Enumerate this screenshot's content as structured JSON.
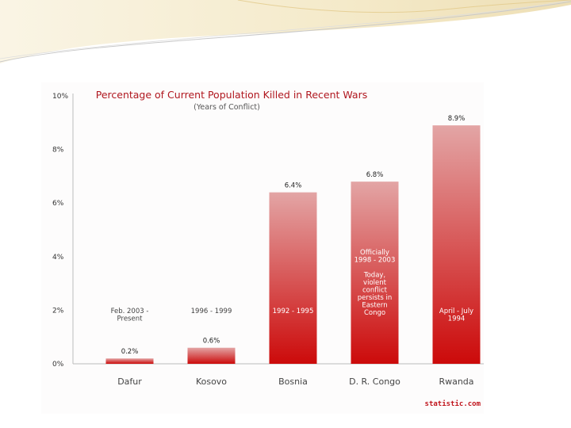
{
  "chart_data": {
    "type": "bar",
    "title": "Percentage of Current Population Killed in Recent Wars",
    "subtitle": "(Years of Conflict)",
    "categories": [
      "Dafur",
      "Kosovo",
      "Bosnia",
      "D. R. Congo",
      "Rwanda"
    ],
    "values": [
      0.2,
      0.6,
      6.4,
      6.8,
      8.9
    ],
    "value_labels": [
      "0.2%",
      "0.6%",
      "6.4%",
      "6.8%",
      "8.9%"
    ],
    "y_ticks": [
      0,
      2,
      4,
      6,
      8,
      10
    ],
    "y_tick_labels": [
      "0%",
      "2%",
      "4%",
      "6%",
      "8%",
      "10%"
    ],
    "ylim": [
      0,
      10
    ],
    "xlabel": "",
    "ylabel": "",
    "grid": false,
    "annotations": [
      {
        "category": "Dafur",
        "lines": [
          "Feb. 2003 -",
          "Present"
        ]
      },
      {
        "category": "Kosovo",
        "lines": [
          "1996 - 1999"
        ]
      },
      {
        "category": "Bosnia",
        "lines": [
          "1992 - 1995"
        ]
      },
      {
        "category": "D. R. Congo",
        "lines": [
          "Officially",
          "1998 - 2003",
          "",
          "Today,",
          "violent",
          "conflict",
          "persists in",
          "Eastern",
          "Congo"
        ]
      },
      {
        "category": "Rwanda",
        "lines": [
          "April - July",
          "1994"
        ]
      }
    ],
    "source": "statistic.com",
    "colors": {
      "title": "#b0171f",
      "subtitle": "#555555",
      "bar_top": "#e3a5a5",
      "bar_bottom": "#cc0a0a",
      "source": "#c0141c",
      "axis": "#bbbbbb"
    }
  }
}
